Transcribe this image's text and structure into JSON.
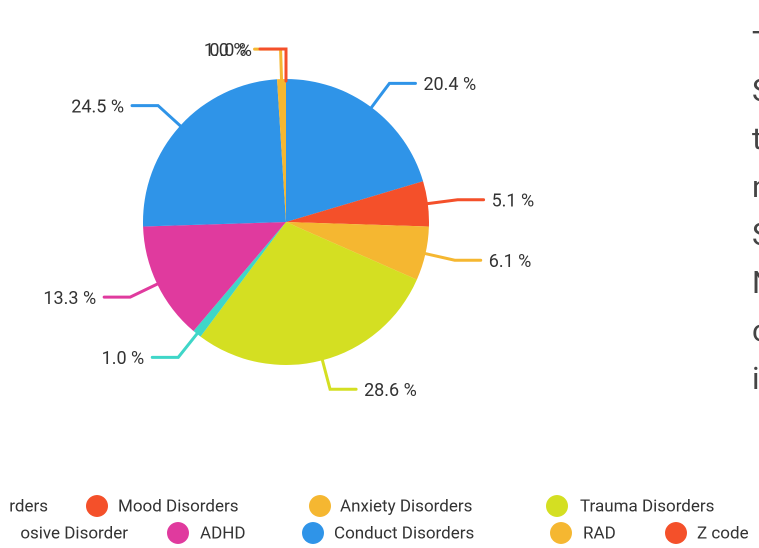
{
  "chart_data": {
    "type": "pie",
    "categories": [
      "rders",
      "Mood Disorders",
      "Anxiety Disorders",
      "Trauma Disorders",
      "osive Disorder",
      "ADHD",
      "Conduct Disorders",
      "RAD",
      "Z code"
    ],
    "values": [
      20.4,
      5.1,
      6.1,
      28.6,
      1.0,
      13.3,
      24.5,
      1.0,
      0.0
    ],
    "value_labels": [
      "20.4 %",
      "5.1 %",
      "6.1 %",
      "28.6 %",
      "1.0 %",
      "13.3 %",
      "24.5 %",
      "1.0 %",
      "0.0 %"
    ],
    "colors": [
      "#2f94e8",
      "#f4502a",
      "#f5b731",
      "#d4df22",
      "#3fd6c8",
      "#e03a9e",
      "#2f94e8",
      "#f5b731",
      "#f4502a"
    ]
  },
  "side_text": [
    "T",
    "S",
    "t",
    "n",
    "S",
    "N",
    "c",
    "i"
  ]
}
